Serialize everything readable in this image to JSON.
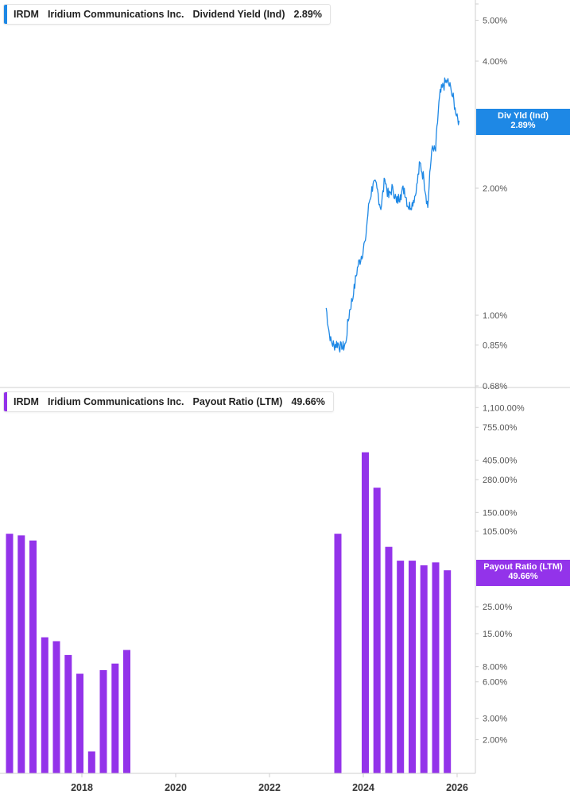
{
  "colors": {
    "yield": "#1e88e5",
    "payout": "#9333ea",
    "axis": "#cfcfcf",
    "tick_text": "#555555"
  },
  "legend_top": {
    "ticker": "IRDM",
    "company": "Iridium Communications Inc.",
    "metric": "Dividend Yield (Ind)",
    "value": "2.89%"
  },
  "legend_bottom": {
    "ticker": "IRDM",
    "company": "Iridium Communications Inc.",
    "metric": "Payout Ratio (LTM)",
    "value": "49.66%"
  },
  "tag_top": {
    "line1": "Div Yld (Ind)",
    "line2": "2.89%"
  },
  "tag_bottom": {
    "line1": "Payout Ratio (LTM)",
    "line2": "49.66%"
  },
  "chart_data": [
    {
      "type": "line",
      "series": [
        {
          "name": "Dividend Yield (Ind)"
        }
      ],
      "y_scale": "log",
      "y_ticks": [
        {
          "v": 0.68,
          "label": "0.68%"
        },
        {
          "v": 0.85,
          "label": "0.85%"
        },
        {
          "v": 1.0,
          "label": "1.00%"
        },
        {
          "v": 2.0,
          "label": "2.00%"
        },
        {
          "v": 4.0,
          "label": "4.00%"
        },
        {
          "v": 5.0,
          "label": "5.00%"
        }
      ],
      "x": [
        "2023-03",
        "2023-04",
        "2023-05",
        "2023-06",
        "2023-07",
        "2023-08",
        "2023-09",
        "2023-10",
        "2023-11",
        "2023-12",
        "2024-01",
        "2024-02",
        "2024-03",
        "2024-04",
        "2024-05",
        "2024-06",
        "2024-07",
        "2024-08",
        "2024-09",
        "2024-10",
        "2024-11",
        "2024-12",
        "2025-01",
        "2025-02",
        "2025-03",
        "2025-04",
        "2025-05",
        "2025-06",
        "2025-07",
        "2025-08",
        "2025-09",
        "2025-10",
        "2025-11",
        "2025-12",
        "2026-01"
      ],
      "values": [
        1.04,
        0.87,
        0.85,
        0.86,
        0.83,
        0.86,
        1.03,
        1.12,
        1.3,
        1.38,
        1.5,
        1.85,
        2.05,
        2.0,
        1.78,
        2.1,
        1.9,
        2.02,
        1.85,
        1.93,
        2.0,
        1.8,
        1.85,
        1.95,
        2.3,
        2.1,
        1.8,
        2.45,
        2.45,
        3.3,
        3.5,
        3.6,
        3.4,
        3.1,
        2.89
      ],
      "last_value": "2.89%"
    },
    {
      "type": "bar",
      "series": [
        {
          "name": "Payout Ratio (LTM)"
        }
      ],
      "y_scale": "log",
      "y_ticks": [
        {
          "v": 1100,
          "label": "1,100.00%"
        },
        {
          "v": 755,
          "label": "755.00%"
        },
        {
          "v": 405,
          "label": "405.00%"
        },
        {
          "v": 280,
          "label": "280.00%"
        },
        {
          "v": 150,
          "label": "150.00%"
        },
        {
          "v": 105,
          "label": "105.00%"
        },
        {
          "v": 25,
          "label": "25.00%"
        },
        {
          "v": 15,
          "label": "15.00%"
        },
        {
          "v": 8,
          "label": "8.00%"
        },
        {
          "v": 6,
          "label": "6.00%"
        },
        {
          "v": 3,
          "label": "3.00%"
        },
        {
          "v": 2,
          "label": "2.00%"
        }
      ],
      "x_ticks": [
        "2018",
        "2020",
        "2022",
        "2024",
        "2026"
      ],
      "bars": [
        {
          "x": "2016-06",
          "value": 100
        },
        {
          "x": "2016-09",
          "value": 97
        },
        {
          "x": "2016-12",
          "value": 88
        },
        {
          "x": "2017-03",
          "value": 14
        },
        {
          "x": "2017-06",
          "value": 13
        },
        {
          "x": "2017-09",
          "value": 10
        },
        {
          "x": "2017-12",
          "value": 7
        },
        {
          "x": "2018-03",
          "value": 1.6
        },
        {
          "x": "2018-06",
          "value": 7.5
        },
        {
          "x": "2018-09",
          "value": 8.5
        },
        {
          "x": "2018-12",
          "value": 11
        },
        {
          "x": "2023-06",
          "value": 100
        },
        {
          "x": "2024-01",
          "value": 470
        },
        {
          "x": "2024-04",
          "value": 240
        },
        {
          "x": "2024-07",
          "value": 78
        },
        {
          "x": "2024-10",
          "value": 60
        },
        {
          "x": "2025-01",
          "value": 60
        },
        {
          "x": "2025-04",
          "value": 55
        },
        {
          "x": "2025-07",
          "value": 58
        },
        {
          "x": "2025-10",
          "value": 50
        }
      ],
      "last_value": "49.66%"
    }
  ]
}
